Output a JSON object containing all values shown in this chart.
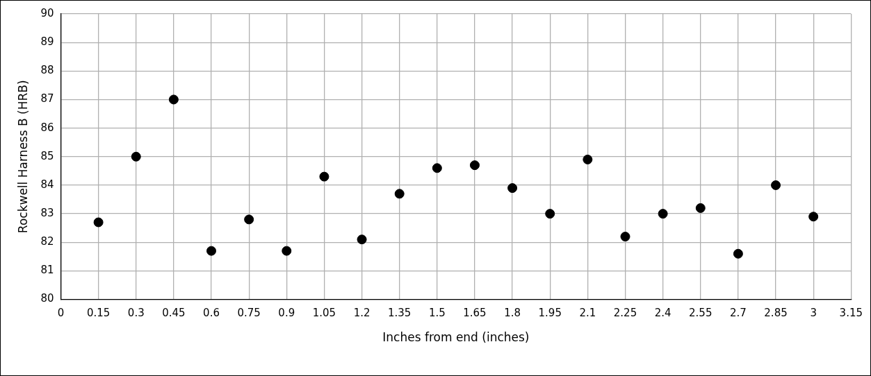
{
  "chart_data": {
    "type": "scatter",
    "xlabel": "Inches from end (inches)",
    "ylabel": "Rockwell Harness B (HRB)",
    "x": [
      0.15,
      0.3,
      0.45,
      0.6,
      0.75,
      0.9,
      1.05,
      1.2,
      1.35,
      1.5,
      1.65,
      1.8,
      1.95,
      2.1,
      2.25,
      2.4,
      2.55,
      2.7,
      2.85,
      3
    ],
    "series": [
      {
        "color": "#000000",
        "values": [
          82.7,
          85.0,
          87.0,
          81.7,
          82.8,
          81.7,
          84.3,
          82.1,
          83.7,
          84.6,
          84.7,
          83.9,
          83.0,
          84.9,
          82.2,
          83.0,
          83.2,
          81.6,
          84.0,
          82.9
        ]
      }
    ],
    "xlim": [
      0,
      3.15
    ],
    "xticks": [
      0,
      0.15,
      0.3,
      0.45,
      0.6,
      0.75,
      0.9,
      1.05,
      1.2,
      1.35,
      1.5,
      1.65,
      1.8,
      1.95,
      2.1,
      2.25,
      2.4,
      2.55,
      2.7,
      2.85,
      3,
      3.15
    ],
    "ylim": [
      80,
      90
    ],
    "yticks": [
      80,
      81,
      82,
      83,
      84,
      85,
      86,
      87,
      88,
      89,
      90
    ],
    "grid": true,
    "marker": "circle"
  }
}
